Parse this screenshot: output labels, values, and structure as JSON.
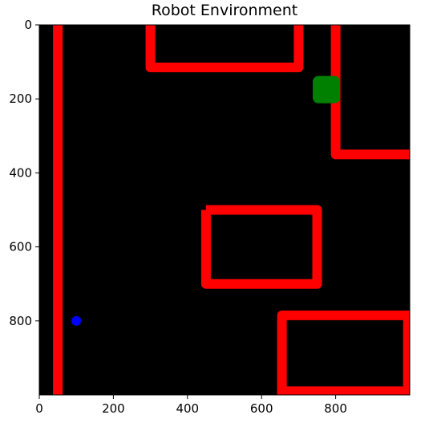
{
  "chart_data": {
    "type": "scatter",
    "title": "Robot Environment",
    "xlabel": "",
    "ylabel": "",
    "xlim": [
      0,
      1000
    ],
    "ylim": [
      1000,
      0
    ],
    "y_inverted": true,
    "grid": false,
    "background_color": "#000000",
    "x_ticks": [
      {
        "value": 0,
        "label": "0"
      },
      {
        "value": 200,
        "label": "200"
      },
      {
        "value": 400,
        "label": "400"
      },
      {
        "value": 600,
        "label": "600"
      },
      {
        "value": 800,
        "label": "800"
      }
    ],
    "y_ticks": [
      {
        "value": 0,
        "label": "0"
      },
      {
        "value": 200,
        "label": "200"
      },
      {
        "value": 400,
        "label": "400"
      },
      {
        "value": 600,
        "label": "600"
      },
      {
        "value": 800,
        "label": "800"
      }
    ],
    "wall_color": "#ff0000",
    "walls": [
      {
        "name": "left-vertical-wall",
        "points": [
          [
            50,
            0
          ],
          [
            50,
            1000
          ]
        ]
      },
      {
        "name": "top-u-wall",
        "points": [
          [
            300,
            0
          ],
          [
            300,
            115
          ],
          [
            700,
            115
          ],
          [
            700,
            0
          ]
        ]
      },
      {
        "name": "right-l-wall",
        "points": [
          [
            800,
            0
          ],
          [
            800,
            350
          ],
          [
            1000,
            350
          ]
        ]
      },
      {
        "name": "middle-rect-wall",
        "points": [
          [
            450,
            500
          ],
          [
            750,
            500
          ],
          [
            750,
            700
          ],
          [
            450,
            700
          ],
          [
            450,
            500
          ]
        ]
      },
      {
        "name": "bottom-right-wall",
        "points": [
          [
            1000,
            785
          ],
          [
            655,
            785
          ],
          [
            655,
            1000
          ]
        ]
      },
      {
        "name": "bottom-right-inner-wall",
        "points": [
          [
            995,
            785
          ],
          [
            995,
            990
          ],
          [
            655,
            990
          ]
        ]
      }
    ],
    "goal": {
      "x": 775,
      "y": 175,
      "color": "#008000"
    },
    "robot": {
      "x": 100,
      "y": 800,
      "color": "#0000ff"
    }
  }
}
